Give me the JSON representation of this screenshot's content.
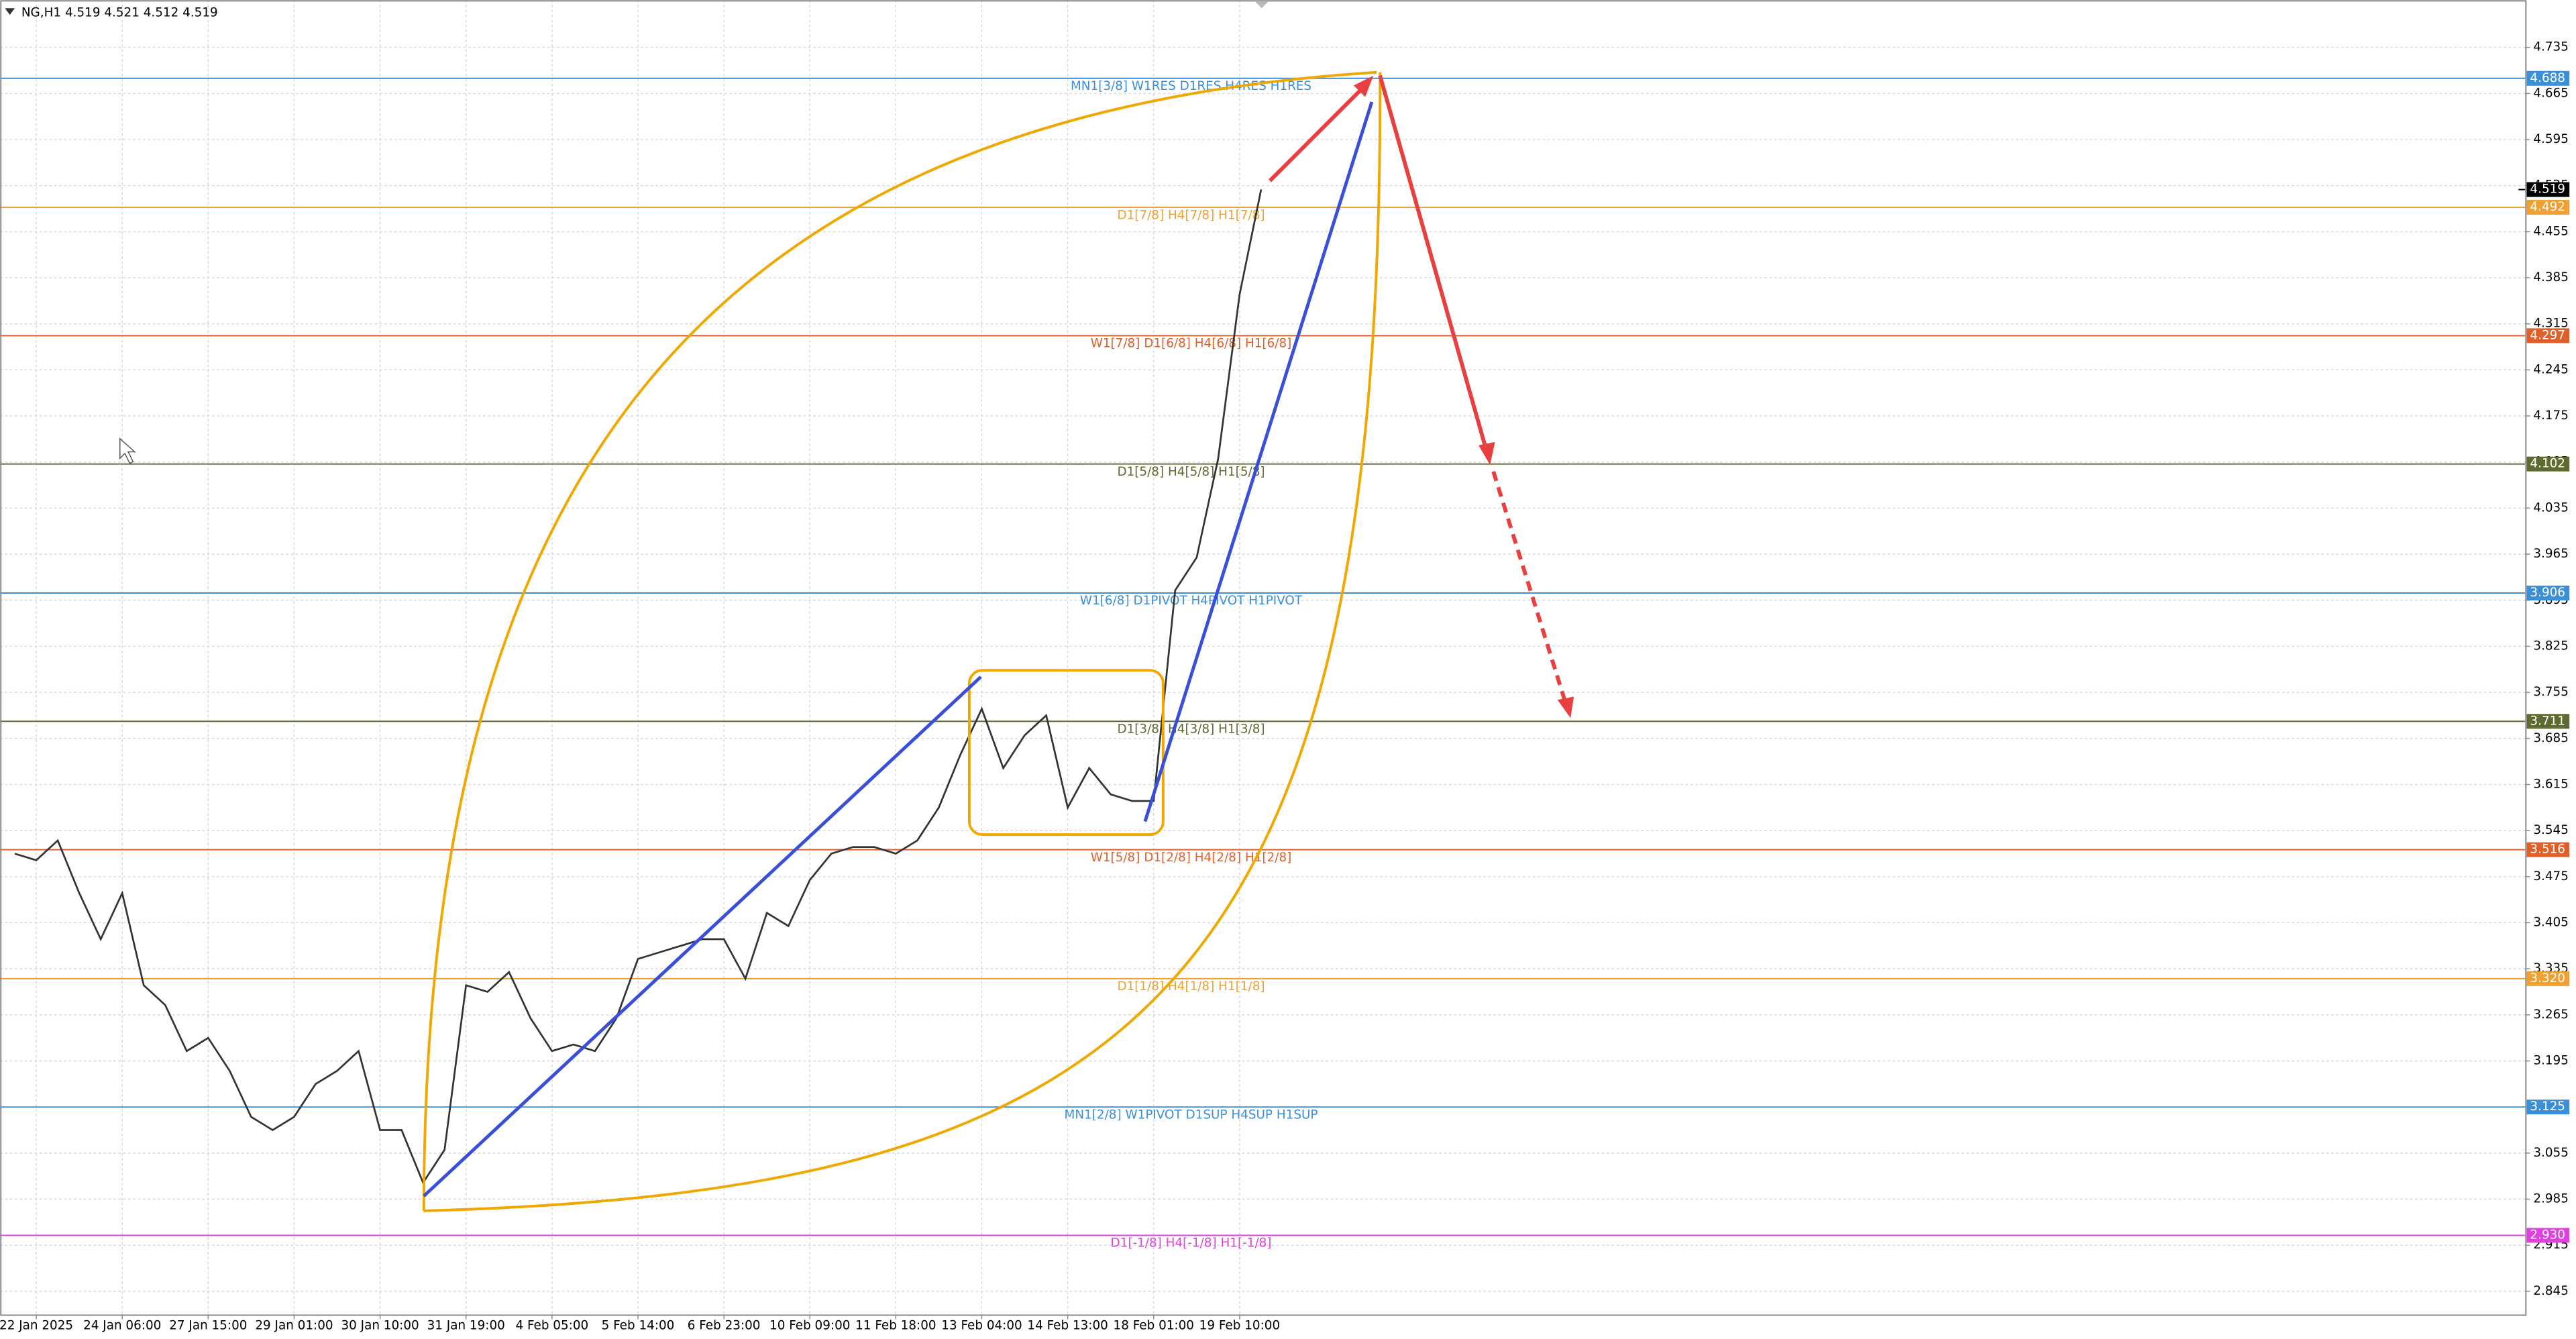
{
  "chart_data": {
    "type": "line",
    "title": "NG,H1  4.519 4.521 4.512 4.519",
    "grid": true,
    "ylim": [
      2.81,
      4.807
    ],
    "yticks": [
      2.845,
      2.915,
      2.985,
      3.055,
      3.125,
      3.195,
      3.265,
      3.335,
      3.405,
      3.475,
      3.545,
      3.615,
      3.685,
      3.755,
      3.825,
      3.895,
      3.965,
      4.035,
      4.105,
      4.175,
      4.245,
      4.315,
      4.385,
      4.455,
      4.525,
      4.595,
      4.665,
      4.735
    ],
    "categories": [
      null,
      "22 Jan 2025",
      null,
      null,
      null,
      "24 Jan 06:00",
      null,
      null,
      null,
      "27 Jan 15:00",
      null,
      null,
      null,
      "29 Jan 01:00",
      null,
      null,
      null,
      "30 Jan 10:00",
      null,
      null,
      null,
      "31 Jan 19:00",
      null,
      null,
      null,
      "4 Feb 05:00",
      null,
      null,
      null,
      "5 Feb 14:00",
      null,
      null,
      null,
      "6 Feb 23:00",
      null,
      null,
      null,
      "10 Feb 09:00",
      null,
      null,
      null,
      "11 Feb 18:00",
      null,
      null,
      null,
      "13 Feb 04:00",
      null,
      null,
      null,
      "14 Feb 13:00",
      null,
      null,
      null,
      "18 Feb 01:00",
      null,
      null,
      null,
      "19 Feb 10:00",
      null
    ],
    "series": [
      {
        "name": "NG,H1",
        "color": "#333333",
        "values": [
          3.51,
          3.5,
          3.53,
          3.45,
          3.38,
          3.45,
          3.31,
          3.28,
          3.21,
          3.23,
          3.18,
          3.11,
          3.09,
          3.11,
          3.16,
          3.18,
          3.21,
          3.09,
          3.09,
          3.01,
          3.06,
          3.31,
          3.3,
          3.33,
          3.26,
          3.21,
          3.22,
          3.21,
          3.26,
          3.35,
          3.36,
          3.37,
          3.38,
          3.38,
          3.32,
          3.42,
          3.4,
          3.47,
          3.51,
          3.52,
          3.52,
          3.51,
          3.53,
          3.58,
          3.66,
          3.73,
          3.64,
          3.69,
          3.72,
          3.58,
          3.64,
          3.6,
          3.59,
          3.59,
          3.91,
          3.96,
          4.11,
          4.36,
          4.519
        ]
      }
    ],
    "current_price": 4.519,
    "levels": [
      {
        "text": "MN1[3/8] W1RES D1RES H4RES H1RES",
        "value": 4.688,
        "value_label": "4.688",
        "color": "#3b8fd8"
      },
      {
        "text": "D1[7/8] H4[7/8] H1[7/8]",
        "value": 4.492,
        "value_label": "4.492",
        "color": "#f0a030"
      },
      {
        "text": "W1[7/8] D1[6/8] H4[6/8] H1[6/8]",
        "value": 4.297,
        "value_label": "4.297",
        "color": "#e0602a"
      },
      {
        "text": "D1[5/8] H4[5/8] H1[5/8]",
        "value": 4.102,
        "value_label": "4.102",
        "color": "#5e6b30"
      },
      {
        "text": "W1[6/8] D1PIVOT H4PIVOT H1PIVOT",
        "value": 3.906,
        "value_label": "3.906",
        "color": "#3b8fd8"
      },
      {
        "text": "D1[3/8] H4[3/8] H1[3/8]",
        "value": 3.711,
        "value_label": "3.711",
        "color": "#5e6b30"
      },
      {
        "text": "W1[5/8] D1[2/8] H4[2/8] H1[2/8]",
        "value": 3.516,
        "value_label": "3.516",
        "color": "#e0602a"
      },
      {
        "text": "D1[1/8] H4[1/8] H1[1/8]",
        "value": 3.32,
        "value_label": "3.320",
        "color": "#f0a030"
      },
      {
        "text": "MN1[2/8] W1PIVOT D1SUP H4SUP H1SUP",
        "value": 3.125,
        "value_label": "3.125",
        "color": "#3b8fd8"
      },
      {
        "text": "D1[-1/8] H4[-1/8] H1[-1/8]",
        "value": 2.93,
        "value_label": "2.930",
        "color": "#e040e0"
      }
    ]
  }
}
